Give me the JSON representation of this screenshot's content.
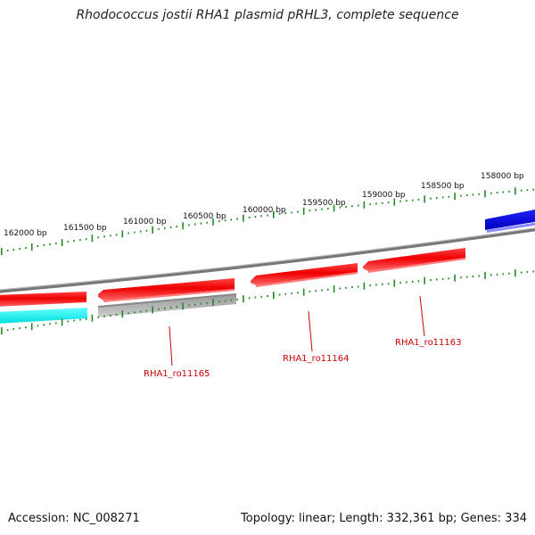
{
  "title": "Rhodococcus jostii RHA1 plasmid pRHL3, complete sequence",
  "footer": {
    "accession": "Accession: NC_008271",
    "summary": "Topology: linear; Length: 332,361 bp; Genes: 334"
  },
  "ruler": {
    "labels": [
      "162000 bp",
      "161500 bp",
      "161000 bp",
      "160500 bp",
      "160000 bp",
      "159500 bp",
      "159000 bp",
      "158500 bp",
      "158000 bp"
    ]
  },
  "colors": {
    "forward_gene": "#ff0000",
    "reverse_gene": "#ff0000",
    "blue_feature": "#0000ee",
    "cyan_feature": "#00eeee",
    "grey_feature": "#aaaaaa",
    "backbone": "#888888",
    "ticks": "#228822",
    "label_text": "#cc0000"
  },
  "gene_labels": [
    {
      "text": "RHA1_ro11165"
    },
    {
      "text": "RHA1_ro11164"
    },
    {
      "text": "RHA1_ro11163"
    }
  ]
}
